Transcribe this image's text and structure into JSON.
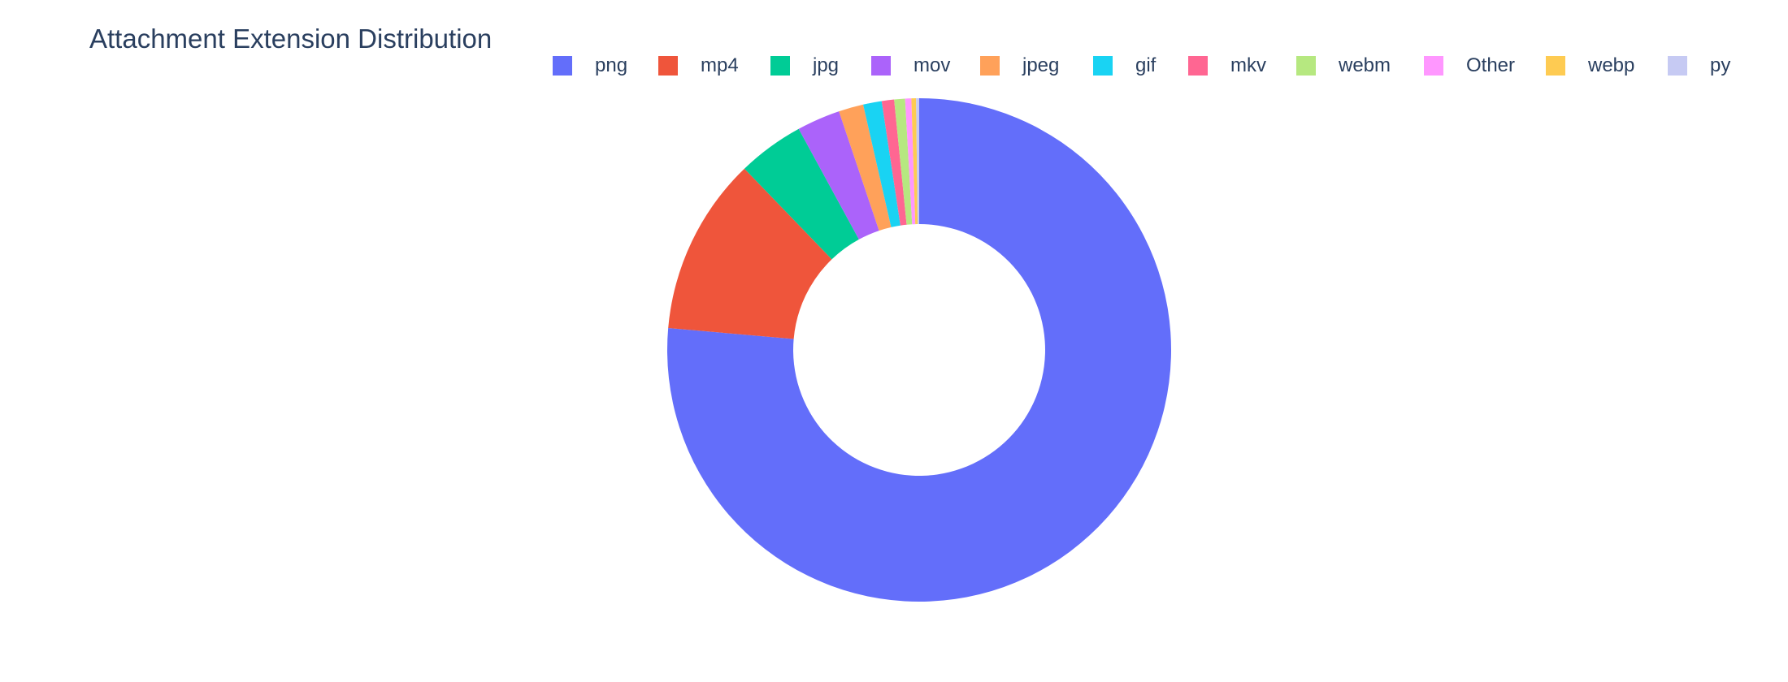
{
  "chart_data": {
    "type": "pie",
    "hole": true,
    "title": "Attachment Extension Distribution",
    "legend_placement": "top-right",
    "labels": [
      "png",
      "mp4",
      "jpg",
      "mov",
      "jpeg",
      "gif",
      "mkv",
      "webm",
      "Other",
      "webp",
      "py"
    ],
    "values": [
      77.0,
      11.5,
      4.3,
      2.8,
      1.6,
      1.2,
      0.8,
      0.7,
      0.4,
      0.3,
      0.2
    ],
    "colors": [
      "#636efa",
      "#ef553b",
      "#00cc96",
      "#ab63fa",
      "#ffa15a",
      "#19d3f3",
      "#ff6692",
      "#b6e880",
      "#ff97ff",
      "#fecb52",
      "#c6caf3"
    ]
  }
}
